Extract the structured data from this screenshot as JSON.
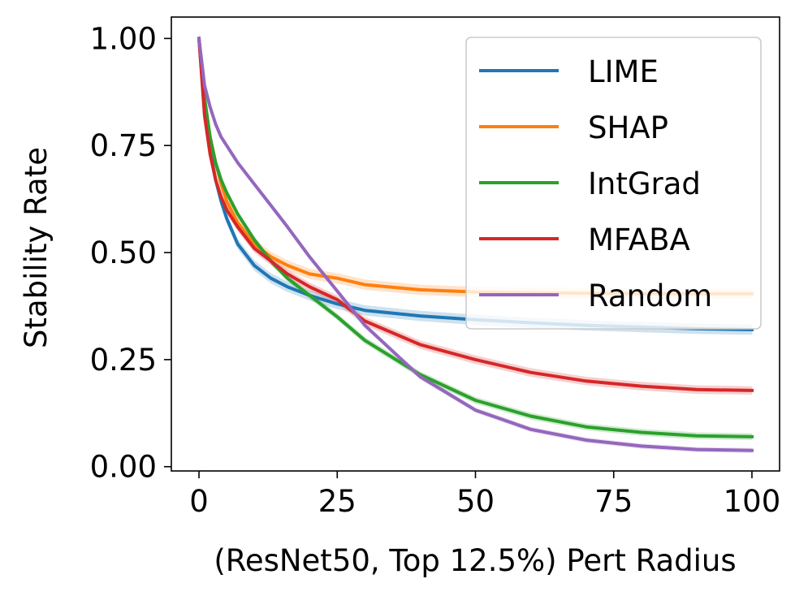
{
  "chart_data": {
    "type": "line",
    "title": "",
    "xlabel": "(ResNet50, Top 12.5%) Pert Radius",
    "ylabel": "Stability Rate",
    "xlim": [
      -5,
      105
    ],
    "ylim": [
      -0.01,
      1.05
    ],
    "xticks": [
      0,
      25,
      50,
      75,
      100
    ],
    "xtick_labels": [
      "0",
      "25",
      "50",
      "75",
      "100"
    ],
    "yticks": [
      0,
      0.25,
      0.5,
      0.75,
      1.0
    ],
    "ytick_labels": [
      "0.00",
      "0.25",
      "0.50",
      "0.75",
      "1.00"
    ],
    "grid": false,
    "legend_position": "top-right",
    "x": [
      0,
      1,
      2,
      3,
      4,
      5,
      7,
      10,
      13,
      16,
      20,
      25,
      30,
      40,
      50,
      60,
      70,
      80,
      90,
      100
    ],
    "series": [
      {
        "name": "LIME",
        "color": "#1f77b4",
        "band": 0.012,
        "values": [
          1.0,
          0.84,
          0.74,
          0.67,
          0.62,
          0.58,
          0.52,
          0.47,
          0.44,
          0.42,
          0.4,
          0.38,
          0.365,
          0.352,
          0.343,
          0.336,
          0.33,
          0.326,
          0.322,
          0.32
        ]
      },
      {
        "name": "SHAP",
        "color": "#ff7f0e",
        "band": 0.012,
        "values": [
          1.0,
          0.86,
          0.77,
          0.71,
          0.66,
          0.62,
          0.57,
          0.52,
          0.49,
          0.47,
          0.45,
          0.44,
          0.425,
          0.413,
          0.408,
          0.406,
          0.405,
          0.404,
          0.404,
          0.404
        ]
      },
      {
        "name": "IntGrad",
        "color": "#2ca02c",
        "band": 0.008,
        "values": [
          1.0,
          0.86,
          0.77,
          0.71,
          0.67,
          0.64,
          0.59,
          0.53,
          0.48,
          0.44,
          0.4,
          0.35,
          0.295,
          0.215,
          0.155,
          0.118,
          0.093,
          0.08,
          0.072,
          0.07
        ]
      },
      {
        "name": "MFABA",
        "color": "#d62728",
        "band": 0.01,
        "values": [
          1.0,
          0.82,
          0.73,
          0.67,
          0.63,
          0.6,
          0.56,
          0.51,
          0.48,
          0.45,
          0.42,
          0.39,
          0.34,
          0.285,
          0.25,
          0.22,
          0.2,
          0.188,
          0.18,
          0.178
        ]
      },
      {
        "name": "Random",
        "color": "#9467bd",
        "band": 0.006,
        "values": [
          1.0,
          0.89,
          0.84,
          0.8,
          0.77,
          0.75,
          0.71,
          0.66,
          0.61,
          0.56,
          0.49,
          0.41,
          0.33,
          0.21,
          0.132,
          0.087,
          0.062,
          0.048,
          0.04,
          0.038
        ]
      }
    ]
  }
}
